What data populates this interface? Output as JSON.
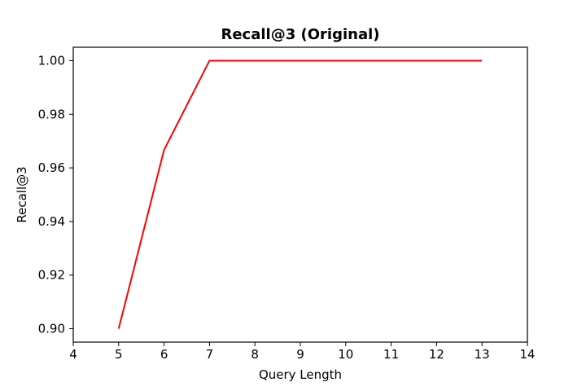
{
  "chart_data": {
    "type": "line",
    "title": "Recall@3 (Original)",
    "xlabel": "Query Length",
    "ylabel": "Recall@3",
    "xlim": [
      4,
      14
    ],
    "ylim": [
      0.895,
      1.005
    ],
    "xticks": [
      4,
      5,
      6,
      7,
      8,
      9,
      10,
      11,
      12,
      13,
      14
    ],
    "xtick_labels": [
      "4",
      "5",
      "6",
      "7",
      "8",
      "9",
      "10",
      "11",
      "12",
      "13",
      "14"
    ],
    "yticks": [
      0.9,
      0.92,
      0.94,
      0.96,
      0.98,
      1.0
    ],
    "ytick_labels": [
      "0.90",
      "0.92",
      "0.94",
      "0.96",
      "0.98",
      "1.00"
    ],
    "grid": false,
    "legend": "none",
    "series": [
      {
        "color": "#ff0000",
        "x": [
          5,
          6,
          7,
          8,
          9,
          10,
          11,
          12,
          13
        ],
        "y": [
          0.9,
          0.9667,
          1.0,
          1.0,
          1.0,
          1.0,
          1.0,
          1.0,
          1.0
        ]
      }
    ]
  }
}
